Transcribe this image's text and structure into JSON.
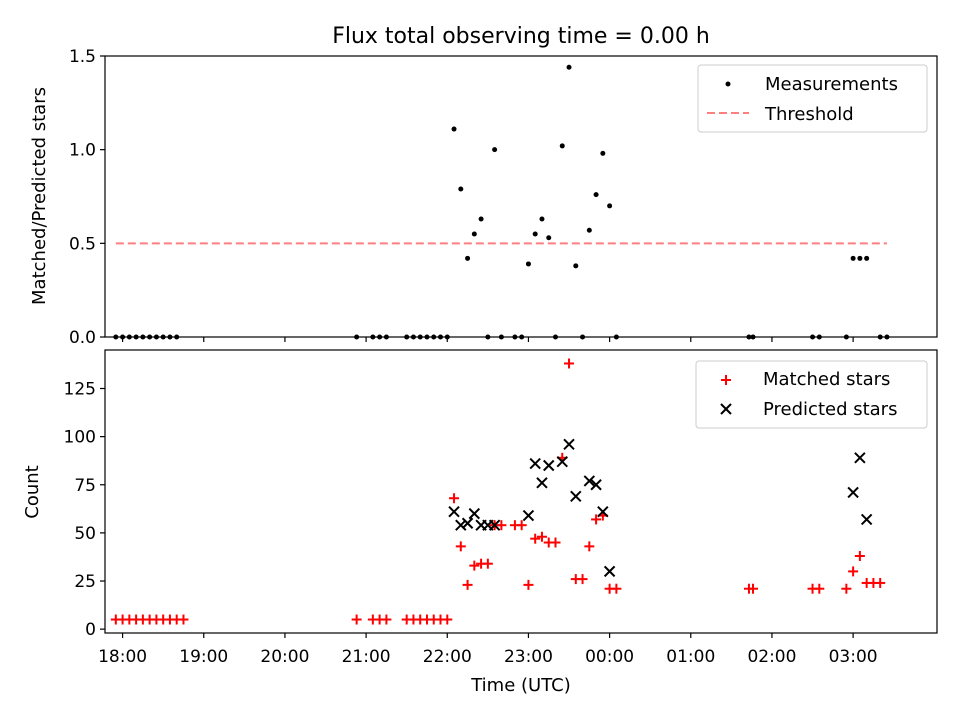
{
  "title": "Flux total observing time = 0.00 h",
  "chart_data": [
    {
      "type": "scatter",
      "panel": "top",
      "title": "Flux total observing time = 0.00 h",
      "xlabel": "",
      "ylabel": "Matched/Predicted stars",
      "xlim": [
        "17:47",
        "04:02"
      ],
      "ylim": [
        0,
        1.5
      ],
      "yticks": [
        0.0,
        0.5,
        1.0,
        1.5
      ],
      "yticklabels": [
        "0.0",
        "0.5",
        "1.0",
        "1.5"
      ],
      "grid": false,
      "legend_position": "upper right",
      "legend": [
        "Measurements",
        "Threshold"
      ],
      "series": [
        {
          "name": "Measurements",
          "kind": "points",
          "color": "#000000",
          "points": [
            [
              "17:55",
              0.0
            ],
            [
              "18:00",
              0.0
            ],
            [
              "18:05",
              0.0
            ],
            [
              "18:10",
              0.0
            ],
            [
              "18:15",
              0.0
            ],
            [
              "18:20",
              0.0
            ],
            [
              "18:25",
              0.0
            ],
            [
              "18:30",
              0.0
            ],
            [
              "18:35",
              0.0
            ],
            [
              "18:40",
              0.0
            ],
            [
              "20:53",
              0.0
            ],
            [
              "21:05",
              0.0
            ],
            [
              "21:10",
              0.0
            ],
            [
              "21:15",
              0.0
            ],
            [
              "21:30",
              0.0
            ],
            [
              "21:35",
              0.0
            ],
            [
              "21:40",
              0.0
            ],
            [
              "21:45",
              0.0
            ],
            [
              "21:50",
              0.0
            ],
            [
              "21:55",
              0.0
            ],
            [
              "22:00",
              0.0
            ],
            [
              "22:05",
              1.11
            ],
            [
              "22:10",
              0.79
            ],
            [
              "22:15",
              0.42
            ],
            [
              "22:20",
              0.55
            ],
            [
              "22:25",
              0.63
            ],
            [
              "22:30",
              0.0
            ],
            [
              "22:35",
              1.0
            ],
            [
              "22:40",
              0.0
            ],
            [
              "22:50",
              0.0
            ],
            [
              "22:55",
              0.0
            ],
            [
              "23:00",
              0.39
            ],
            [
              "23:05",
              0.55
            ],
            [
              "23:10",
              0.63
            ],
            [
              "23:15",
              0.53
            ],
            [
              "23:20",
              0.0
            ],
            [
              "23:25",
              1.02
            ],
            [
              "23:30",
              1.44
            ],
            [
              "23:35",
              0.38
            ],
            [
              "23:40",
              0.0
            ],
            [
              "23:45",
              0.57
            ],
            [
              "23:50",
              0.76
            ],
            [
              "23:55",
              0.98
            ],
            [
              "00:00",
              0.7
            ],
            [
              "00:05",
              0.0
            ],
            [
              "01:43",
              0.0
            ],
            [
              "01:46",
              0.0
            ],
            [
              "02:30",
              0.0
            ],
            [
              "02:35",
              0.0
            ],
            [
              "02:55",
              0.0
            ],
            [
              "03:00",
              0.42
            ],
            [
              "03:05",
              0.42
            ],
            [
              "03:10",
              0.42
            ],
            [
              "03:20",
              0.0
            ],
            [
              "03:25",
              0.0
            ]
          ]
        },
        {
          "name": "Threshold",
          "kind": "dashed-line",
          "color": "#ff7f7f",
          "points": [
            [
              "17:55",
              0.5
            ],
            [
              "03:25",
              0.5
            ]
          ]
        }
      ]
    },
    {
      "type": "scatter",
      "panel": "bottom",
      "xlabel": "Time (UTC)",
      "ylabel": "Count",
      "xlim": [
        "17:47",
        "04:02"
      ],
      "ylim": [
        -2,
        145
      ],
      "yticks": [
        0,
        25,
        50,
        75,
        100,
        125
      ],
      "yticklabels": [
        "0",
        "25",
        "50",
        "75",
        "100",
        "125"
      ],
      "xticks": [
        "18:00",
        "19:00",
        "20:00",
        "21:00",
        "22:00",
        "23:00",
        "00:00",
        "01:00",
        "02:00",
        "03:00"
      ],
      "grid": false,
      "legend_position": "upper right",
      "legend": [
        "Matched stars",
        "Predicted stars"
      ],
      "series": [
        {
          "name": "Matched stars",
          "marker": "plus",
          "color": "#ff0000",
          "points": [
            [
              "17:55",
              5
            ],
            [
              "18:00",
              5
            ],
            [
              "18:05",
              5
            ],
            [
              "18:10",
              5
            ],
            [
              "18:15",
              5
            ],
            [
              "18:20",
              5
            ],
            [
              "18:25",
              5
            ],
            [
              "18:30",
              5
            ],
            [
              "18:35",
              5
            ],
            [
              "18:40",
              5
            ],
            [
              "18:45",
              5
            ],
            [
              "20:53",
              5
            ],
            [
              "21:05",
              5
            ],
            [
              "21:10",
              5
            ],
            [
              "21:15",
              5
            ],
            [
              "21:30",
              5
            ],
            [
              "21:35",
              5
            ],
            [
              "21:40",
              5
            ],
            [
              "21:45",
              5
            ],
            [
              "21:50",
              5
            ],
            [
              "21:55",
              5
            ],
            [
              "22:00",
              5
            ],
            [
              "22:05",
              68
            ],
            [
              "22:10",
              43
            ],
            [
              "22:15",
              23
            ],
            [
              "22:20",
              33
            ],
            [
              "22:25",
              34
            ],
            [
              "22:30",
              34
            ],
            [
              "22:35",
              54
            ],
            [
              "22:40",
              54
            ],
            [
              "22:50",
              54
            ],
            [
              "22:55",
              54
            ],
            [
              "23:00",
              23
            ],
            [
              "23:05",
              47
            ],
            [
              "23:10",
              48
            ],
            [
              "23:15",
              45
            ],
            [
              "23:20",
              45
            ],
            [
              "23:25",
              89
            ],
            [
              "23:30",
              138
            ],
            [
              "23:35",
              26
            ],
            [
              "23:40",
              26
            ],
            [
              "23:45",
              43
            ],
            [
              "23:50",
              57
            ],
            [
              "23:55",
              59
            ],
            [
              "00:00",
              21
            ],
            [
              "00:05",
              21
            ],
            [
              "01:43",
              21
            ],
            [
              "01:46",
              21
            ],
            [
              "02:30",
              21
            ],
            [
              "02:35",
              21
            ],
            [
              "02:55",
              21
            ],
            [
              "03:00",
              30
            ],
            [
              "03:05",
              38
            ],
            [
              "03:10",
              24
            ],
            [
              "03:15",
              24
            ],
            [
              "03:20",
              24
            ]
          ]
        },
        {
          "name": "Predicted stars",
          "marker": "x",
          "color": "#000000",
          "points": [
            [
              "22:05",
              61
            ],
            [
              "22:10",
              54
            ],
            [
              "22:15",
              55
            ],
            [
              "22:20",
              60
            ],
            [
              "22:25",
              54
            ],
            [
              "22:30",
              54
            ],
            [
              "22:35",
              54
            ],
            [
              "23:00",
              59
            ],
            [
              "23:05",
              86
            ],
            [
              "23:10",
              76
            ],
            [
              "23:15",
              85
            ],
            [
              "23:25",
              87
            ],
            [
              "23:30",
              96
            ],
            [
              "23:35",
              69
            ],
            [
              "23:45",
              77
            ],
            [
              "23:50",
              75
            ],
            [
              "23:55",
              61
            ],
            [
              "00:00",
              30
            ],
            [
              "03:00",
              71
            ],
            [
              "03:05",
              89
            ],
            [
              "03:10",
              57
            ]
          ]
        }
      ]
    }
  ]
}
